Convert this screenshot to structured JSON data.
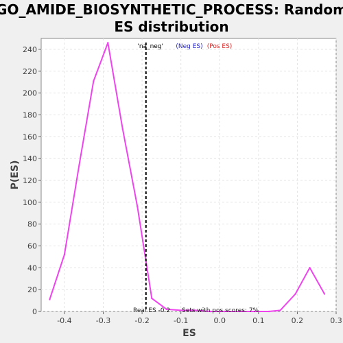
{
  "chart_data": {
    "type": "line",
    "title_line1": "GO_AMIDE_BIOSYNTHETIC_PROCESS: Random",
    "title_line2": "ES distribution",
    "xlabel": "ES",
    "ylabel": "P(ES)",
    "xlim": [
      -0.46,
      0.3
    ],
    "ylim": [
      0,
      250
    ],
    "x_ticks": [
      -0.4,
      -0.3,
      -0.2,
      -0.1,
      0.0,
      0.1,
      0.2,
      0.3
    ],
    "x_tick_labels": [
      "-0.4",
      "-0.3",
      "-0.2",
      "-0.1",
      "0.0",
      "0.1",
      "0.2",
      "0.3"
    ],
    "y_ticks": [
      0,
      20,
      40,
      60,
      80,
      100,
      120,
      140,
      160,
      180,
      200,
      220,
      240
    ],
    "y_tick_labels": [
      "0",
      "20",
      "40",
      "60",
      "80",
      "100",
      "120",
      "140",
      "160",
      "180",
      "200",
      "220",
      "240"
    ],
    "grid": true,
    "series": [
      {
        "color": "#ee44ee",
        "x": [
          -0.438,
          -0.4,
          -0.362,
          -0.325,
          -0.288,
          -0.25,
          -0.212,
          -0.175,
          -0.137,
          -0.1,
          -0.062,
          -0.024,
          0.013,
          0.051,
          0.089,
          0.127,
          0.156,
          0.195,
          0.232,
          0.27
        ],
        "y": [
          11,
          52,
          134,
          211,
          246,
          167,
          96,
          12,
          2,
          1,
          1,
          0,
          0,
          0,
          0,
          0,
          1,
          16,
          40,
          16
        ]
      }
    ],
    "real_es": -0.19,
    "legend": {
      "label_na": "'na_neg'",
      "label_neg": "(Neg ES)",
      "label_pos": "(Pos ES)",
      "color_na": "#000000",
      "color_neg": "#2222cc",
      "color_pos": "#dd2222",
      "placement": "top-center"
    },
    "annotations": {
      "real_es_text": "Real ES -0.2",
      "pos_scores_text": "Sets with pos scores: 7%"
    }
  }
}
